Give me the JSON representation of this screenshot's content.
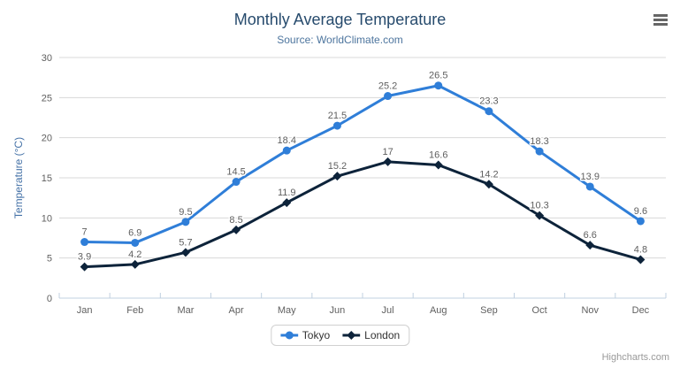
{
  "header": {
    "title": "Monthly Average Temperature",
    "subtitle": "Source: WorldClimate.com"
  },
  "chart_data": {
    "type": "line",
    "categories": [
      "Jan",
      "Feb",
      "Mar",
      "Apr",
      "May",
      "Jun",
      "Jul",
      "Aug",
      "Sep",
      "Oct",
      "Nov",
      "Dec"
    ],
    "series": [
      {
        "name": "Tokyo",
        "color": "#2f7ed8",
        "marker": "circle",
        "values": [
          7,
          6.9,
          9.5,
          14.5,
          18.4,
          21.5,
          25.2,
          26.5,
          23.3,
          18.3,
          13.9,
          9.6
        ]
      },
      {
        "name": "London",
        "color": "#0d233a",
        "marker": "diamond",
        "values": [
          3.9,
          4.2,
          5.7,
          8.5,
          11.9,
          15.2,
          17,
          16.6,
          14.2,
          10.3,
          6.6,
          4.8
        ]
      }
    ],
    "title": "Monthly Average Temperature",
    "subtitle": "Source: WorldClimate.com",
    "xlabel": "",
    "ylabel": "Temperature (°C)",
    "ylim": [
      0,
      30
    ],
    "yticks": [
      0,
      5,
      10,
      15,
      20,
      25,
      30
    ],
    "grid": true,
    "data_labels": true,
    "legend_position": "bottom"
  },
  "colors": {
    "gridline": "#d8d8d8",
    "axis_line": "#c0d0e0",
    "axis_label": "#606060",
    "title": "#274b6d",
    "subtitle": "#4d759e",
    "y_axis_title": "#4572a7"
  },
  "credits": "Highcharts.com",
  "icons": {
    "menu": "hamburger-menu-icon"
  }
}
